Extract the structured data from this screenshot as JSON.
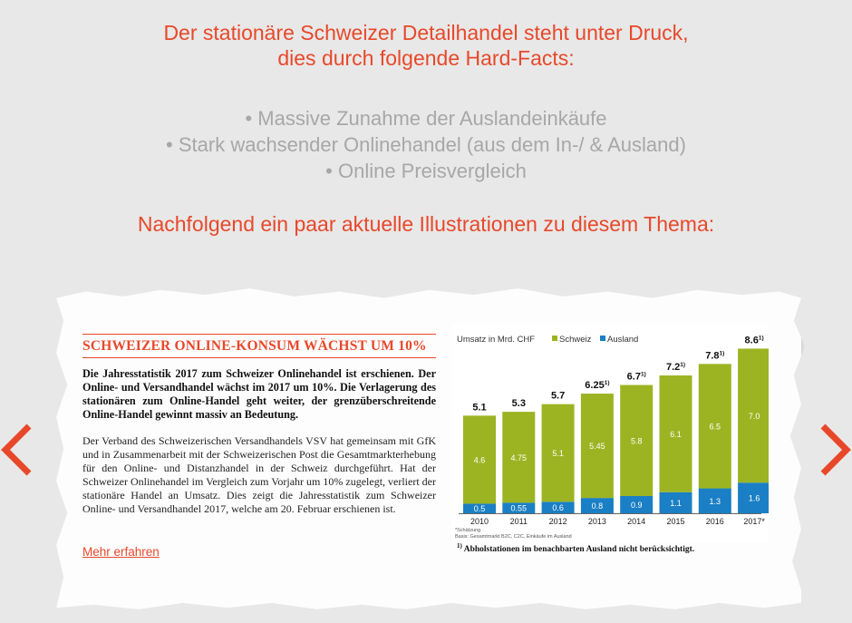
{
  "intro": {
    "headline_line1": "Der stationäre Schweizer Detailhandel steht unter Druck,",
    "headline_line2": "dies durch folgende Hard-Facts:",
    "bullets": [
      "• Massive Zunahme der Auslandeinkäufe",
      "• Stark wachsender Onlinehandel (aus dem In-/ & Ausland)",
      "• Online Preisvergleich"
    ],
    "subheadline": "Nachfolgend ein paar aktuelle Illustrationen zu diesem Thema:"
  },
  "carousel": {
    "prev_icon": "chevron-left-icon",
    "next_icon": "chevron-right-icon",
    "arrow_color": "#e8482a"
  },
  "article": {
    "title": "SCHWEIZER ONLINE-KONSUM WÄCHST UM 10%",
    "lead": "Die Jahresstatistik 2017 zum Schweizer Onlinehandel ist erschienen. Der Online- und Versandhandel wächst im 2017 um 10%. Die Verlagerung des stationären zum Online-Handel geht weiter, der grenzüberschreitende Online-Handel gewinnt massiv an Bedeutung.",
    "body": "Der Verband des Schweizerischen Versandhandels VSV hat gemeinsam mit GfK und in Zusammenarbeit mit der Schweizerischen Post die Gesamtmarkterhebung für den Online- und Distanzhandel in der Schweiz durchgeführt. Hat der Schweizer Onlinehandel im Vergleich zum Vorjahr um 10% zugelegt, verliert der stationäre Handel an Umsatz. Dies zeigt die Jahresstatistik zum Schweizer Online- und Versandhandel 2017, welche am 20. Februar erschienen ist.",
    "more_link": "Mehr erfahren"
  },
  "chart_note": {
    "marker": "1)",
    "text": "Abholstationen im benachbarten Ausland nicht berücksichtigt."
  },
  "chart_data": {
    "type": "bar",
    "stacked": true,
    "ylabel": "Umsatz in Mrd. CHF",
    "categories": [
      "2010",
      "2011",
      "2012",
      "2013",
      "2014",
      "2015",
      "2016",
      "2017*"
    ],
    "series": [
      {
        "name": "Ausland",
        "color": "#1a7fc4",
        "values": [
          0.5,
          0.55,
          0.6,
          0.8,
          0.9,
          1.1,
          1.3,
          1.6
        ],
        "labels": [
          "0.5",
          "0.55",
          "0.6",
          "0.8",
          "0.9",
          "1.1",
          "1.3",
          "1.6"
        ]
      },
      {
        "name": "Schweiz",
        "color": "#9cb422",
        "values": [
          4.6,
          4.75,
          5.1,
          5.45,
          5.8,
          6.1,
          6.5,
          7.0
        ],
        "labels": [
          "4.6",
          "4.75",
          "5.1",
          "5.45",
          "5.8",
          "6.1",
          "6.5",
          "7.0"
        ]
      }
    ],
    "totals": [
      "5.1",
      "5.3",
      "5.7",
      "6.25",
      "6.7",
      "7.2",
      "7.8",
      "8.6"
    ],
    "total_marks": [
      "",
      "",
      "",
      "1)",
      "1)",
      "1)",
      "1)",
      "1)"
    ],
    "legend_position": "top",
    "footnotes": [
      "*Schätzung",
      "Basis: Gesamtmarkt B2C, C2C, Einkäufe im Ausland"
    ],
    "ylim": [
      0,
      9
    ]
  }
}
